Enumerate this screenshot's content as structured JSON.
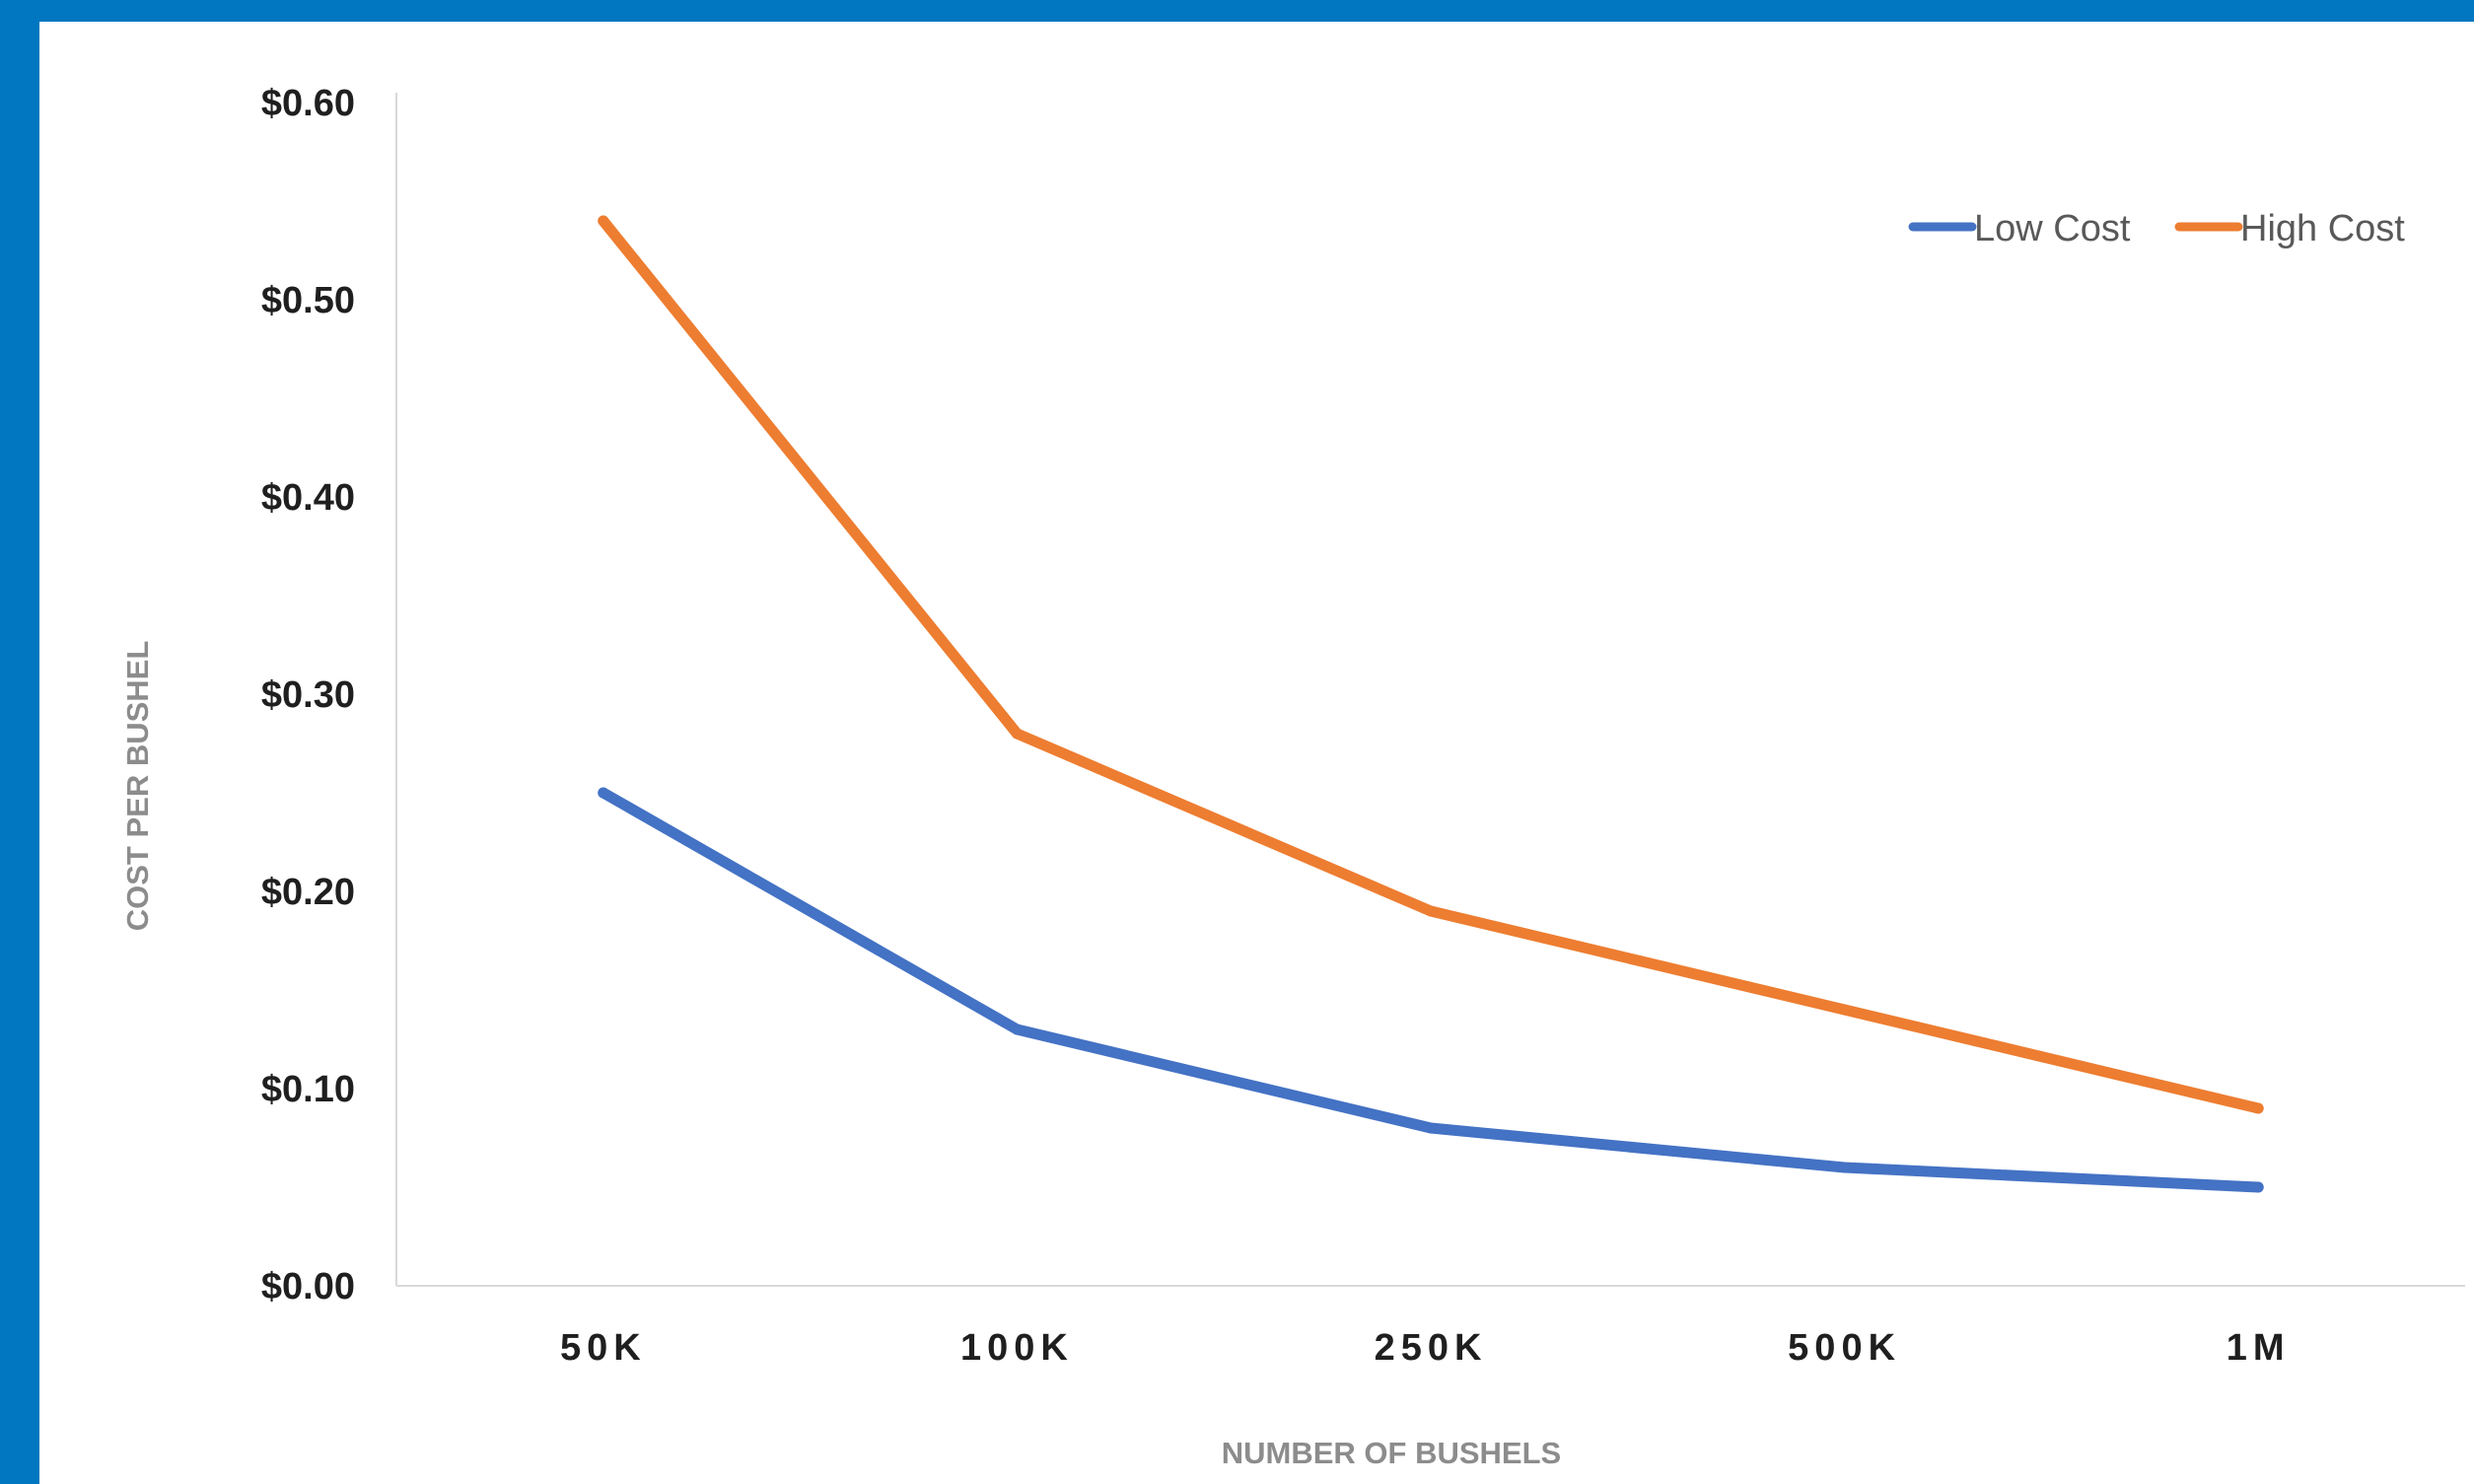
{
  "chart_data": {
    "type": "line",
    "categories": [
      "50K",
      "100K",
      "250K",
      "500K",
      "1M"
    ],
    "series": [
      {
        "name": "Low Cost",
        "color": "#4472c4",
        "values": [
          0.25,
          0.13,
          0.08,
          0.06,
          0.05
        ]
      },
      {
        "name": "High Cost",
        "color": "#ed7d31",
        "values": [
          0.54,
          0.28,
          0.19,
          0.14,
          0.09
        ]
      }
    ],
    "xlabel": "NUMBER OF BUSHELS",
    "ylabel": "COST PER BUSHEL",
    "ylim": [
      0,
      0.6
    ],
    "y_ticks": [
      "$0.00",
      "$0.10",
      "$0.20",
      "$0.30",
      "$0.40",
      "$0.50",
      "$0.60"
    ],
    "grid": false,
    "legend_position": "top-right"
  },
  "colors": {
    "frame_background": "#0077c0",
    "plot_background": "#ffffff",
    "axis_line": "#d9d9d9"
  }
}
